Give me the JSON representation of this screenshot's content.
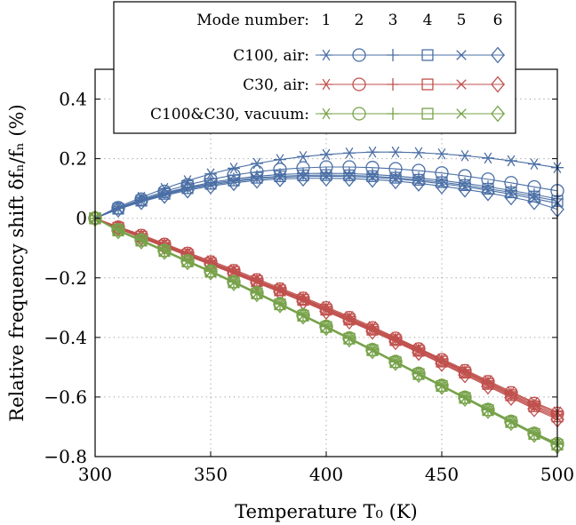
{
  "chart_data": {
    "type": "line",
    "xlabel": "Temperature T₀ (K)",
    "ylabel": "Relative frequency shift δfₙ/fₙ (%)",
    "xlim": [
      300,
      500
    ],
    "ylim": [
      -0.8,
      0.5
    ],
    "xticks": [
      "300",
      "350",
      "400",
      "450",
      "500"
    ],
    "yticks": [
      "−0.8",
      "−0.6",
      "−0.4",
      "−0.2",
      "0",
      "0.2",
      "0.4"
    ],
    "ytick_values": [
      -0.8,
      -0.6,
      -0.4,
      -0.2,
      0,
      0.2,
      0.4
    ],
    "xtick_values": [
      300,
      350,
      400,
      450,
      500
    ],
    "grid": true,
    "legend_placement": "top-center",
    "legend": {
      "header": "Mode number:",
      "mode_numbers": [
        "1",
        "2",
        "3",
        "4",
        "5",
        "6"
      ],
      "groups": [
        {
          "label": "C100, air:",
          "color": "#4a6fa5"
        },
        {
          "label": "C30, air:",
          "color": "#c0504d"
        },
        {
          "label": "C100&C30, vacuum:",
          "color": "#77a24a"
        }
      ]
    },
    "marker_names": [
      "asterisk",
      "circle",
      "plus",
      "square",
      "cross",
      "diamond"
    ],
    "x": [
      300,
      310,
      320,
      330,
      340,
      350,
      360,
      370,
      380,
      390,
      400,
      410,
      420,
      430,
      440,
      450,
      460,
      470,
      480,
      490,
      500
    ],
    "series": [
      {
        "group": 0,
        "mode": 1,
        "values": [
          0,
          0.038,
          0.07,
          0.1,
          0.126,
          0.149,
          0.168,
          0.184,
          0.197,
          0.207,
          0.214,
          0.219,
          0.222,
          0.222,
          0.22,
          0.216,
          0.21,
          0.202,
          0.193,
          0.182,
          0.17
        ]
      },
      {
        "group": 0,
        "mode": 2,
        "values": [
          0,
          0.035,
          0.064,
          0.09,
          0.112,
          0.13,
          0.145,
          0.156,
          0.164,
          0.169,
          0.172,
          0.172,
          0.17,
          0.166,
          0.16,
          0.152,
          0.142,
          0.131,
          0.119,
          0.105,
          0.092
        ]
      },
      {
        "group": 0,
        "mode": 3,
        "values": [
          0,
          0.033,
          0.061,
          0.085,
          0.104,
          0.12,
          0.132,
          0.141,
          0.147,
          0.15,
          0.151,
          0.15,
          0.147,
          0.142,
          0.135,
          0.127,
          0.117,
          0.106,
          0.093,
          0.08,
          0.065
        ]
      },
      {
        "group": 0,
        "mode": 4,
        "values": [
          0,
          0.032,
          0.059,
          0.082,
          0.101,
          0.116,
          0.127,
          0.136,
          0.141,
          0.144,
          0.145,
          0.144,
          0.141,
          0.136,
          0.129,
          0.121,
          0.111,
          0.099,
          0.087,
          0.073,
          0.058
        ]
      },
      {
        "group": 0,
        "mode": 5,
        "values": [
          0,
          0.031,
          0.057,
          0.079,
          0.098,
          0.112,
          0.123,
          0.132,
          0.137,
          0.14,
          0.141,
          0.14,
          0.137,
          0.132,
          0.125,
          0.116,
          0.106,
          0.094,
          0.081,
          0.066,
          0.05
        ]
      },
      {
        "group": 0,
        "mode": 6,
        "values": [
          0,
          0.03,
          0.055,
          0.076,
          0.094,
          0.108,
          0.119,
          0.127,
          0.132,
          0.134,
          0.134,
          0.133,
          0.13,
          0.125,
          0.117,
          0.108,
          0.097,
          0.085,
          0.071,
          0.055,
          0.03
        ]
      },
      {
        "group": 1,
        "mode": 1,
        "values": [
          0,
          -0.028,
          -0.055,
          -0.085,
          -0.115,
          -0.143,
          -0.172,
          -0.203,
          -0.234,
          -0.265,
          -0.297,
          -0.33,
          -0.364,
          -0.4,
          -0.436,
          -0.472,
          -0.508,
          -0.545,
          -0.582,
          -0.618,
          -0.65
        ]
      },
      {
        "group": 1,
        "mode": 2,
        "values": [
          0,
          -0.03,
          -0.058,
          -0.088,
          -0.118,
          -0.147,
          -0.176,
          -0.207,
          -0.238,
          -0.269,
          -0.301,
          -0.334,
          -0.368,
          -0.403,
          -0.439,
          -0.475,
          -0.512,
          -0.549,
          -0.586,
          -0.622,
          -0.655
        ]
      },
      {
        "group": 1,
        "mode": 3,
        "values": [
          0,
          -0.031,
          -0.06,
          -0.09,
          -0.12,
          -0.149,
          -0.178,
          -0.209,
          -0.24,
          -0.271,
          -0.304,
          -0.337,
          -0.371,
          -0.406,
          -0.442,
          -0.478,
          -0.515,
          -0.552,
          -0.59,
          -0.627,
          -0.66
        ]
      },
      {
        "group": 1,
        "mode": 4,
        "values": [
          0,
          -0.032,
          -0.062,
          -0.092,
          -0.122,
          -0.151,
          -0.18,
          -0.211,
          -0.242,
          -0.274,
          -0.307,
          -0.34,
          -0.374,
          -0.409,
          -0.445,
          -0.481,
          -0.518,
          -0.556,
          -0.594,
          -0.631,
          -0.665
        ]
      },
      {
        "group": 1,
        "mode": 5,
        "values": [
          0,
          -0.033,
          -0.064,
          -0.094,
          -0.124,
          -0.153,
          -0.183,
          -0.214,
          -0.245,
          -0.277,
          -0.31,
          -0.343,
          -0.377,
          -0.412,
          -0.448,
          -0.485,
          -0.522,
          -0.56,
          -0.598,
          -0.636,
          -0.67
        ]
      },
      {
        "group": 1,
        "mode": 6,
        "values": [
          0,
          -0.034,
          -0.066,
          -0.096,
          -0.126,
          -0.156,
          -0.186,
          -0.217,
          -0.248,
          -0.28,
          -0.313,
          -0.346,
          -0.38,
          -0.415,
          -0.451,
          -0.488,
          -0.526,
          -0.564,
          -0.602,
          -0.64,
          -0.675
        ]
      },
      {
        "group": 2,
        "mode": 1,
        "values": [
          0,
          -0.038,
          -0.072,
          -0.107,
          -0.142,
          -0.176,
          -0.212,
          -0.249,
          -0.286,
          -0.324,
          -0.362,
          -0.401,
          -0.44,
          -0.48,
          -0.52,
          -0.56,
          -0.6,
          -0.64,
          -0.68,
          -0.72,
          -0.755
        ]
      },
      {
        "group": 2,
        "mode": 2,
        "values": [
          0,
          -0.039,
          -0.073,
          -0.108,
          -0.143,
          -0.177,
          -0.213,
          -0.25,
          -0.287,
          -0.325,
          -0.363,
          -0.402,
          -0.441,
          -0.481,
          -0.521,
          -0.561,
          -0.601,
          -0.642,
          -0.682,
          -0.722,
          -0.757
        ]
      },
      {
        "group": 2,
        "mode": 3,
        "values": [
          0,
          -0.04,
          -0.074,
          -0.109,
          -0.144,
          -0.178,
          -0.214,
          -0.251,
          -0.288,
          -0.326,
          -0.364,
          -0.403,
          -0.442,
          -0.482,
          -0.522,
          -0.562,
          -0.602,
          -0.643,
          -0.683,
          -0.723,
          -0.759
        ]
      },
      {
        "group": 2,
        "mode": 4,
        "values": [
          0,
          -0.041,
          -0.075,
          -0.11,
          -0.145,
          -0.179,
          -0.215,
          -0.252,
          -0.289,
          -0.327,
          -0.365,
          -0.404,
          -0.443,
          -0.483,
          -0.523,
          -0.563,
          -0.603,
          -0.644,
          -0.684,
          -0.724,
          -0.76
        ]
      },
      {
        "group": 2,
        "mode": 5,
        "values": [
          0,
          -0.042,
          -0.076,
          -0.111,
          -0.146,
          -0.18,
          -0.216,
          -0.253,
          -0.29,
          -0.328,
          -0.366,
          -0.405,
          -0.444,
          -0.484,
          -0.524,
          -0.564,
          -0.604,
          -0.645,
          -0.685,
          -0.725,
          -0.762
        ]
      },
      {
        "group": 2,
        "mode": 6,
        "values": [
          0,
          -0.043,
          -0.077,
          -0.112,
          -0.147,
          -0.181,
          -0.217,
          -0.254,
          -0.291,
          -0.329,
          -0.367,
          -0.406,
          -0.445,
          -0.485,
          -0.525,
          -0.565,
          -0.605,
          -0.646,
          -0.686,
          -0.726,
          -0.764
        ]
      }
    ]
  }
}
